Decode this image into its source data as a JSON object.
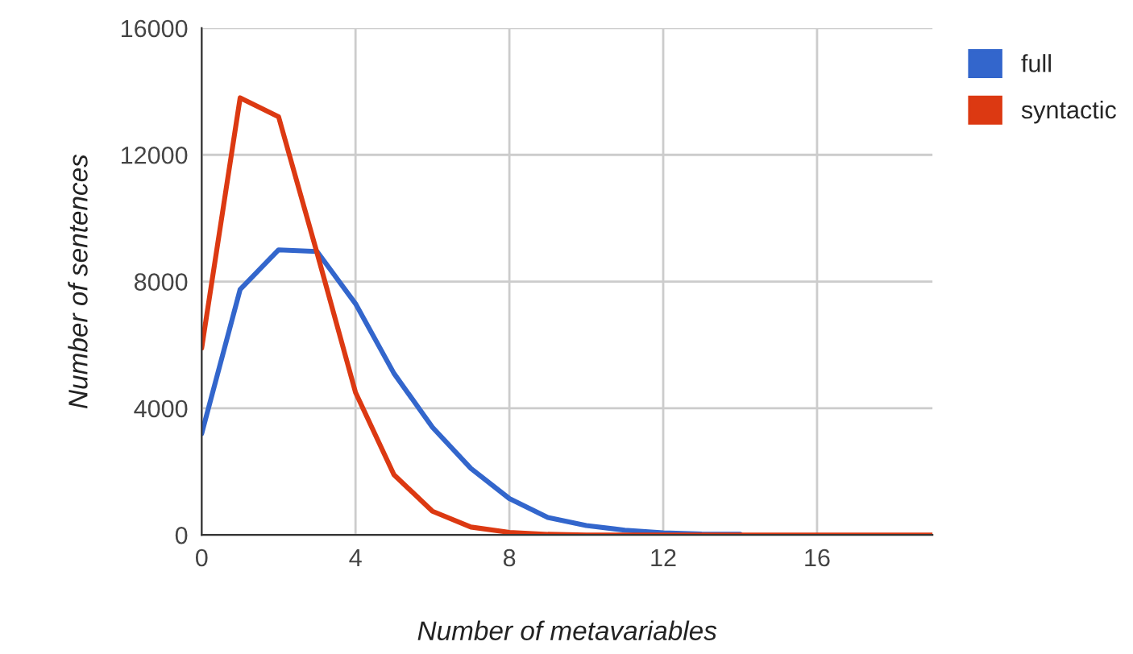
{
  "chart_data": {
    "type": "line",
    "xlabel": "Number of metavariables",
    "ylabel": "Number of sentences",
    "x": [
      0,
      1,
      2,
      3,
      4,
      5,
      6,
      7,
      8,
      9,
      10,
      11,
      12,
      13,
      14,
      15,
      16,
      17,
      18,
      19
    ],
    "series": [
      {
        "name": "full",
        "color": "#3366cc",
        "values": [
          3200,
          7750,
          9000,
          8950,
          7300,
          5100,
          3400,
          2100,
          1150,
          550,
          300,
          150,
          70,
          30,
          20,
          null,
          null,
          null,
          null,
          null
        ]
      },
      {
        "name": "syntactic",
        "color": "#dc3912",
        "values": [
          5900,
          13800,
          13200,
          8900,
          4500,
          1900,
          750,
          250,
          80,
          20,
          0,
          0,
          0,
          0,
          0,
          0,
          0,
          0,
          0,
          0
        ]
      }
    ],
    "xlim": [
      0,
      19
    ],
    "xticks": [
      0,
      4,
      8,
      12,
      16
    ],
    "ylim": [
      0,
      16000
    ],
    "yticks": [
      0,
      4000,
      8000,
      12000,
      16000
    ],
    "grid": true,
    "legend": "top right",
    "marker": "none",
    "line_style": "solid"
  }
}
